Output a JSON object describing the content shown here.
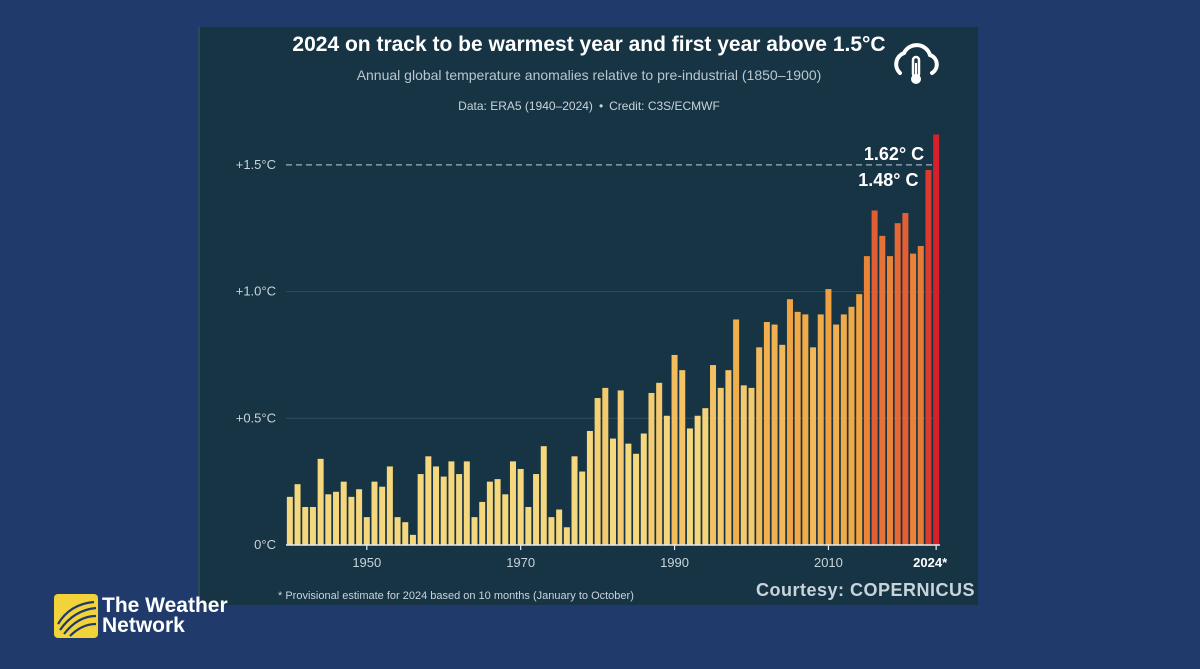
{
  "title": "2024 on track to be warmest year and first year above 1.5°C",
  "subtitle": "Annual global temperature anomalies relative to pre-industrial (1850–1900)",
  "source": "Data: ERA5 (1940–2024)",
  "credit": "Credit: C3S/ECMWF",
  "footnote": "* Provisional estimate for 2024 based on 10 months (January to October)",
  "courtesy": "Courtesy: COPERNICUS",
  "brand": {
    "line1": "The Weather",
    "line2": "Network"
  },
  "icons": {
    "c3s": "cloud-thermometer-icon",
    "twn": "weather-network-logo-icon"
  },
  "colors": {
    "background": "#1f3a6b",
    "panel": "#173445",
    "bar_low": "#f5d77e",
    "bar_mid": "#f0a23e",
    "bar_high": "#d8202a",
    "reference_line": "#9fb2bd"
  },
  "chart_data": {
    "type": "bar",
    "title": "2024 on track to be warmest year and first year above 1.5°C",
    "xlabel": "",
    "ylabel": "",
    "ylim": [
      0,
      1.62
    ],
    "x_ticks": [
      "1950",
      "1970",
      "1990",
      "2010",
      "2024*"
    ],
    "y_ticks": [
      "0°C",
      "+0.5°C",
      "+1.0°C",
      "+1.5°C"
    ],
    "reference_line": {
      "value": 1.5
    },
    "annotations": [
      {
        "text": "1.62° C",
        "year": 2024,
        "value": 1.62
      },
      {
        "text": "1.48° C",
        "year": 2023,
        "value": 1.48
      }
    ],
    "x": [
      1940,
      1941,
      1942,
      1943,
      1944,
      1945,
      1946,
      1947,
      1948,
      1949,
      1950,
      1951,
      1952,
      1953,
      1954,
      1955,
      1956,
      1957,
      1958,
      1959,
      1960,
      1961,
      1962,
      1963,
      1964,
      1965,
      1966,
      1967,
      1968,
      1969,
      1970,
      1971,
      1972,
      1973,
      1974,
      1975,
      1976,
      1977,
      1978,
      1979,
      1980,
      1981,
      1982,
      1983,
      1984,
      1985,
      1986,
      1987,
      1988,
      1989,
      1990,
      1991,
      1992,
      1993,
      1994,
      1995,
      1996,
      1997,
      1998,
      1999,
      2000,
      2001,
      2002,
      2003,
      2004,
      2005,
      2006,
      2007,
      2008,
      2009,
      2010,
      2011,
      2012,
      2013,
      2014,
      2015,
      2016,
      2017,
      2018,
      2019,
      2020,
      2021,
      2022,
      2023,
      2024
    ],
    "values": [
      0.19,
      0.24,
      0.15,
      0.15,
      0.34,
      0.2,
      0.21,
      0.25,
      0.19,
      0.22,
      0.11,
      0.25,
      0.23,
      0.31,
      0.11,
      0.09,
      0.04,
      0.28,
      0.35,
      0.31,
      0.27,
      0.33,
      0.28,
      0.33,
      0.11,
      0.17,
      0.25,
      0.26,
      0.2,
      0.33,
      0.3,
      0.15,
      0.28,
      0.39,
      0.11,
      0.14,
      0.07,
      0.35,
      0.29,
      0.45,
      0.58,
      0.62,
      0.42,
      0.61,
      0.4,
      0.36,
      0.44,
      0.6,
      0.64,
      0.51,
      0.75,
      0.69,
      0.46,
      0.51,
      0.54,
      0.71,
      0.62,
      0.69,
      0.89,
      0.63,
      0.62,
      0.78,
      0.88,
      0.87,
      0.79,
      0.97,
      0.92,
      0.91,
      0.78,
      0.91,
      1.01,
      0.87,
      0.91,
      0.94,
      0.99,
      1.14,
      1.32,
      1.22,
      1.14,
      1.27,
      1.31,
      1.15,
      1.18,
      1.48,
      1.62
    ]
  }
}
